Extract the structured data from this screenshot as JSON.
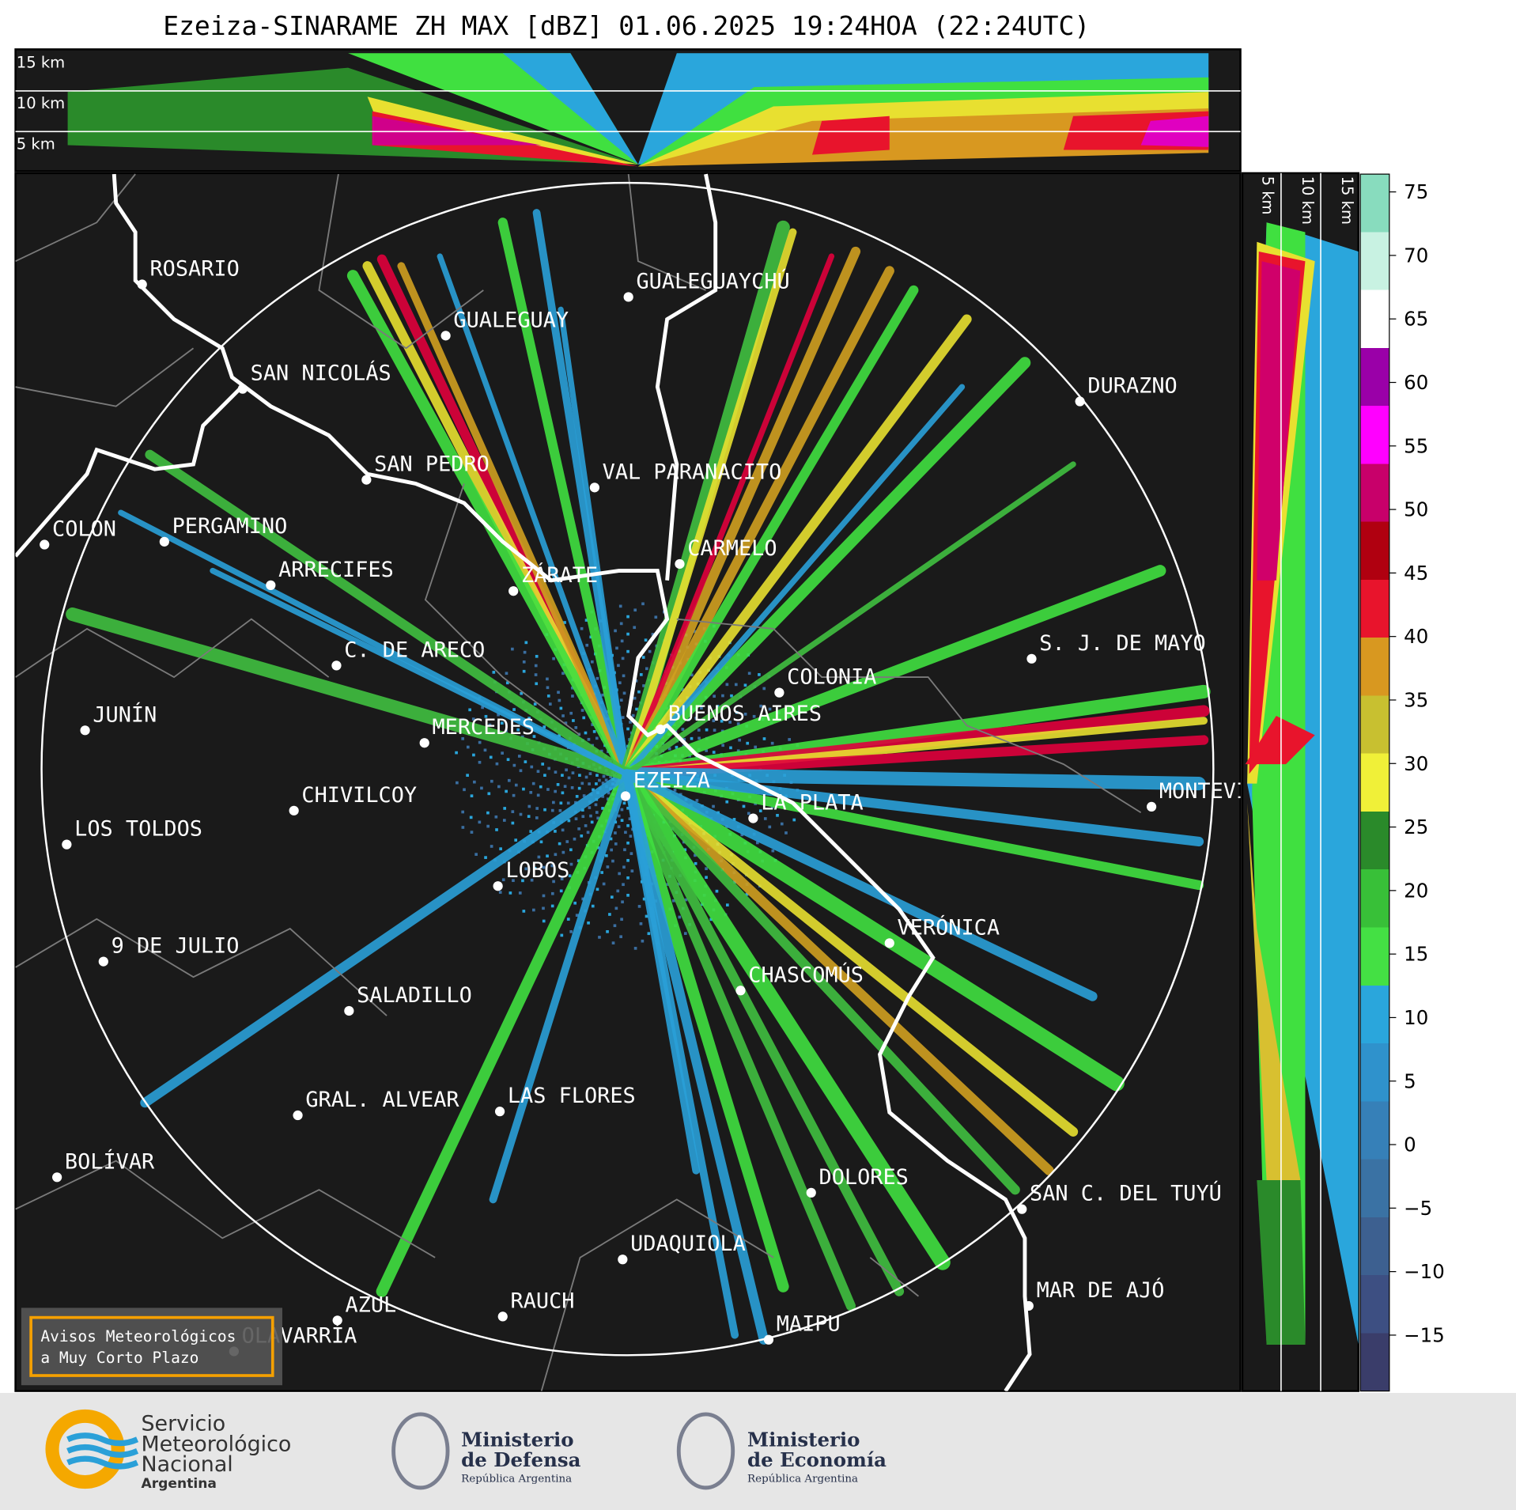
{
  "title": "Ezeiza-SINARAME ZH MAX [dBZ] 01.06.2025 19:24HOA (22:24UTC)",
  "top_panel": {
    "height_labels": [
      "15 km",
      "10 km",
      "5 km"
    ]
  },
  "side_panel": {
    "height_labels": [
      "5 km",
      "10 km",
      "15 km"
    ]
  },
  "cities": [
    "ROSARIO",
    "GUALEGUAYCHÚ",
    "GUALEGUAY",
    "SAN NICOLÁS",
    "DURAZNO",
    "SAN PEDRO",
    "VAL PARANACITO",
    "COLON",
    "PERGAMINO",
    "CARMELO",
    "ARRECIFES",
    "ZÁRATE",
    "S. J. DE MAYO",
    "C. DE ARECO",
    "COLONIA",
    "BUENOS AIRES",
    "JUNÍN",
    "MERCEDES",
    "EZEIZA",
    "MONTEVIDEO",
    "LA PLATA",
    "CHIVILCOY",
    "LOS TOLDOS",
    "LOBOS",
    "VERÓNICA",
    "9 DE JULIO",
    "CHASCOMÚS",
    "SALADILLO",
    "GRAL. ALVEAR",
    "LAS FLORES",
    "BOLÍVAR",
    "DOLORES",
    "SAN C. DEL TUYÚ",
    "UDAQUIOLA",
    "MAR DE AJÓ",
    "AZUL",
    "RAUCH",
    "OLAVARRÍA",
    "MAIPU"
  ],
  "colorbar": {
    "lim": [
      -19.4,
      76.4
    ],
    "ticks": [
      75,
      70,
      65,
      60,
      55,
      50,
      45,
      40,
      35,
      30,
      25,
      20,
      15,
      10,
      5,
      0,
      {
        "value": -5,
        "label": "−5"
      },
      {
        "value": -10,
        "label": "−10"
      },
      {
        "value": -15,
        "label": "−15"
      }
    ],
    "colors": [
      "#3a3d6a",
      "#3d4f82",
      "#3d6090",
      "#3a72a4",
      "#3680b8",
      "#2f92cc",
      "#2aa6dc",
      "#44e044",
      "#38c038",
      "#2a8a2a",
      "#f0f038",
      "#c8c030",
      "#d89820",
      "#e8142c",
      "#b00010",
      "#c8006a",
      "#ff00ff",
      "#9a00a8",
      "#ffffff",
      "#c8f2e2",
      "#88dcbe"
    ]
  },
  "notice": [
    "Avisos Meteorológicos",
    "a Muy Corto Plazo"
  ],
  "logos": {
    "smn": [
      "Servicio",
      "Meteorológico",
      "Nacional",
      "Argentina"
    ],
    "defensa": [
      "Ministerio",
      "de Defensa",
      "República Argentina"
    ],
    "economia": [
      "Ministerio",
      "de Economía",
      "República Argentina"
    ]
  }
}
